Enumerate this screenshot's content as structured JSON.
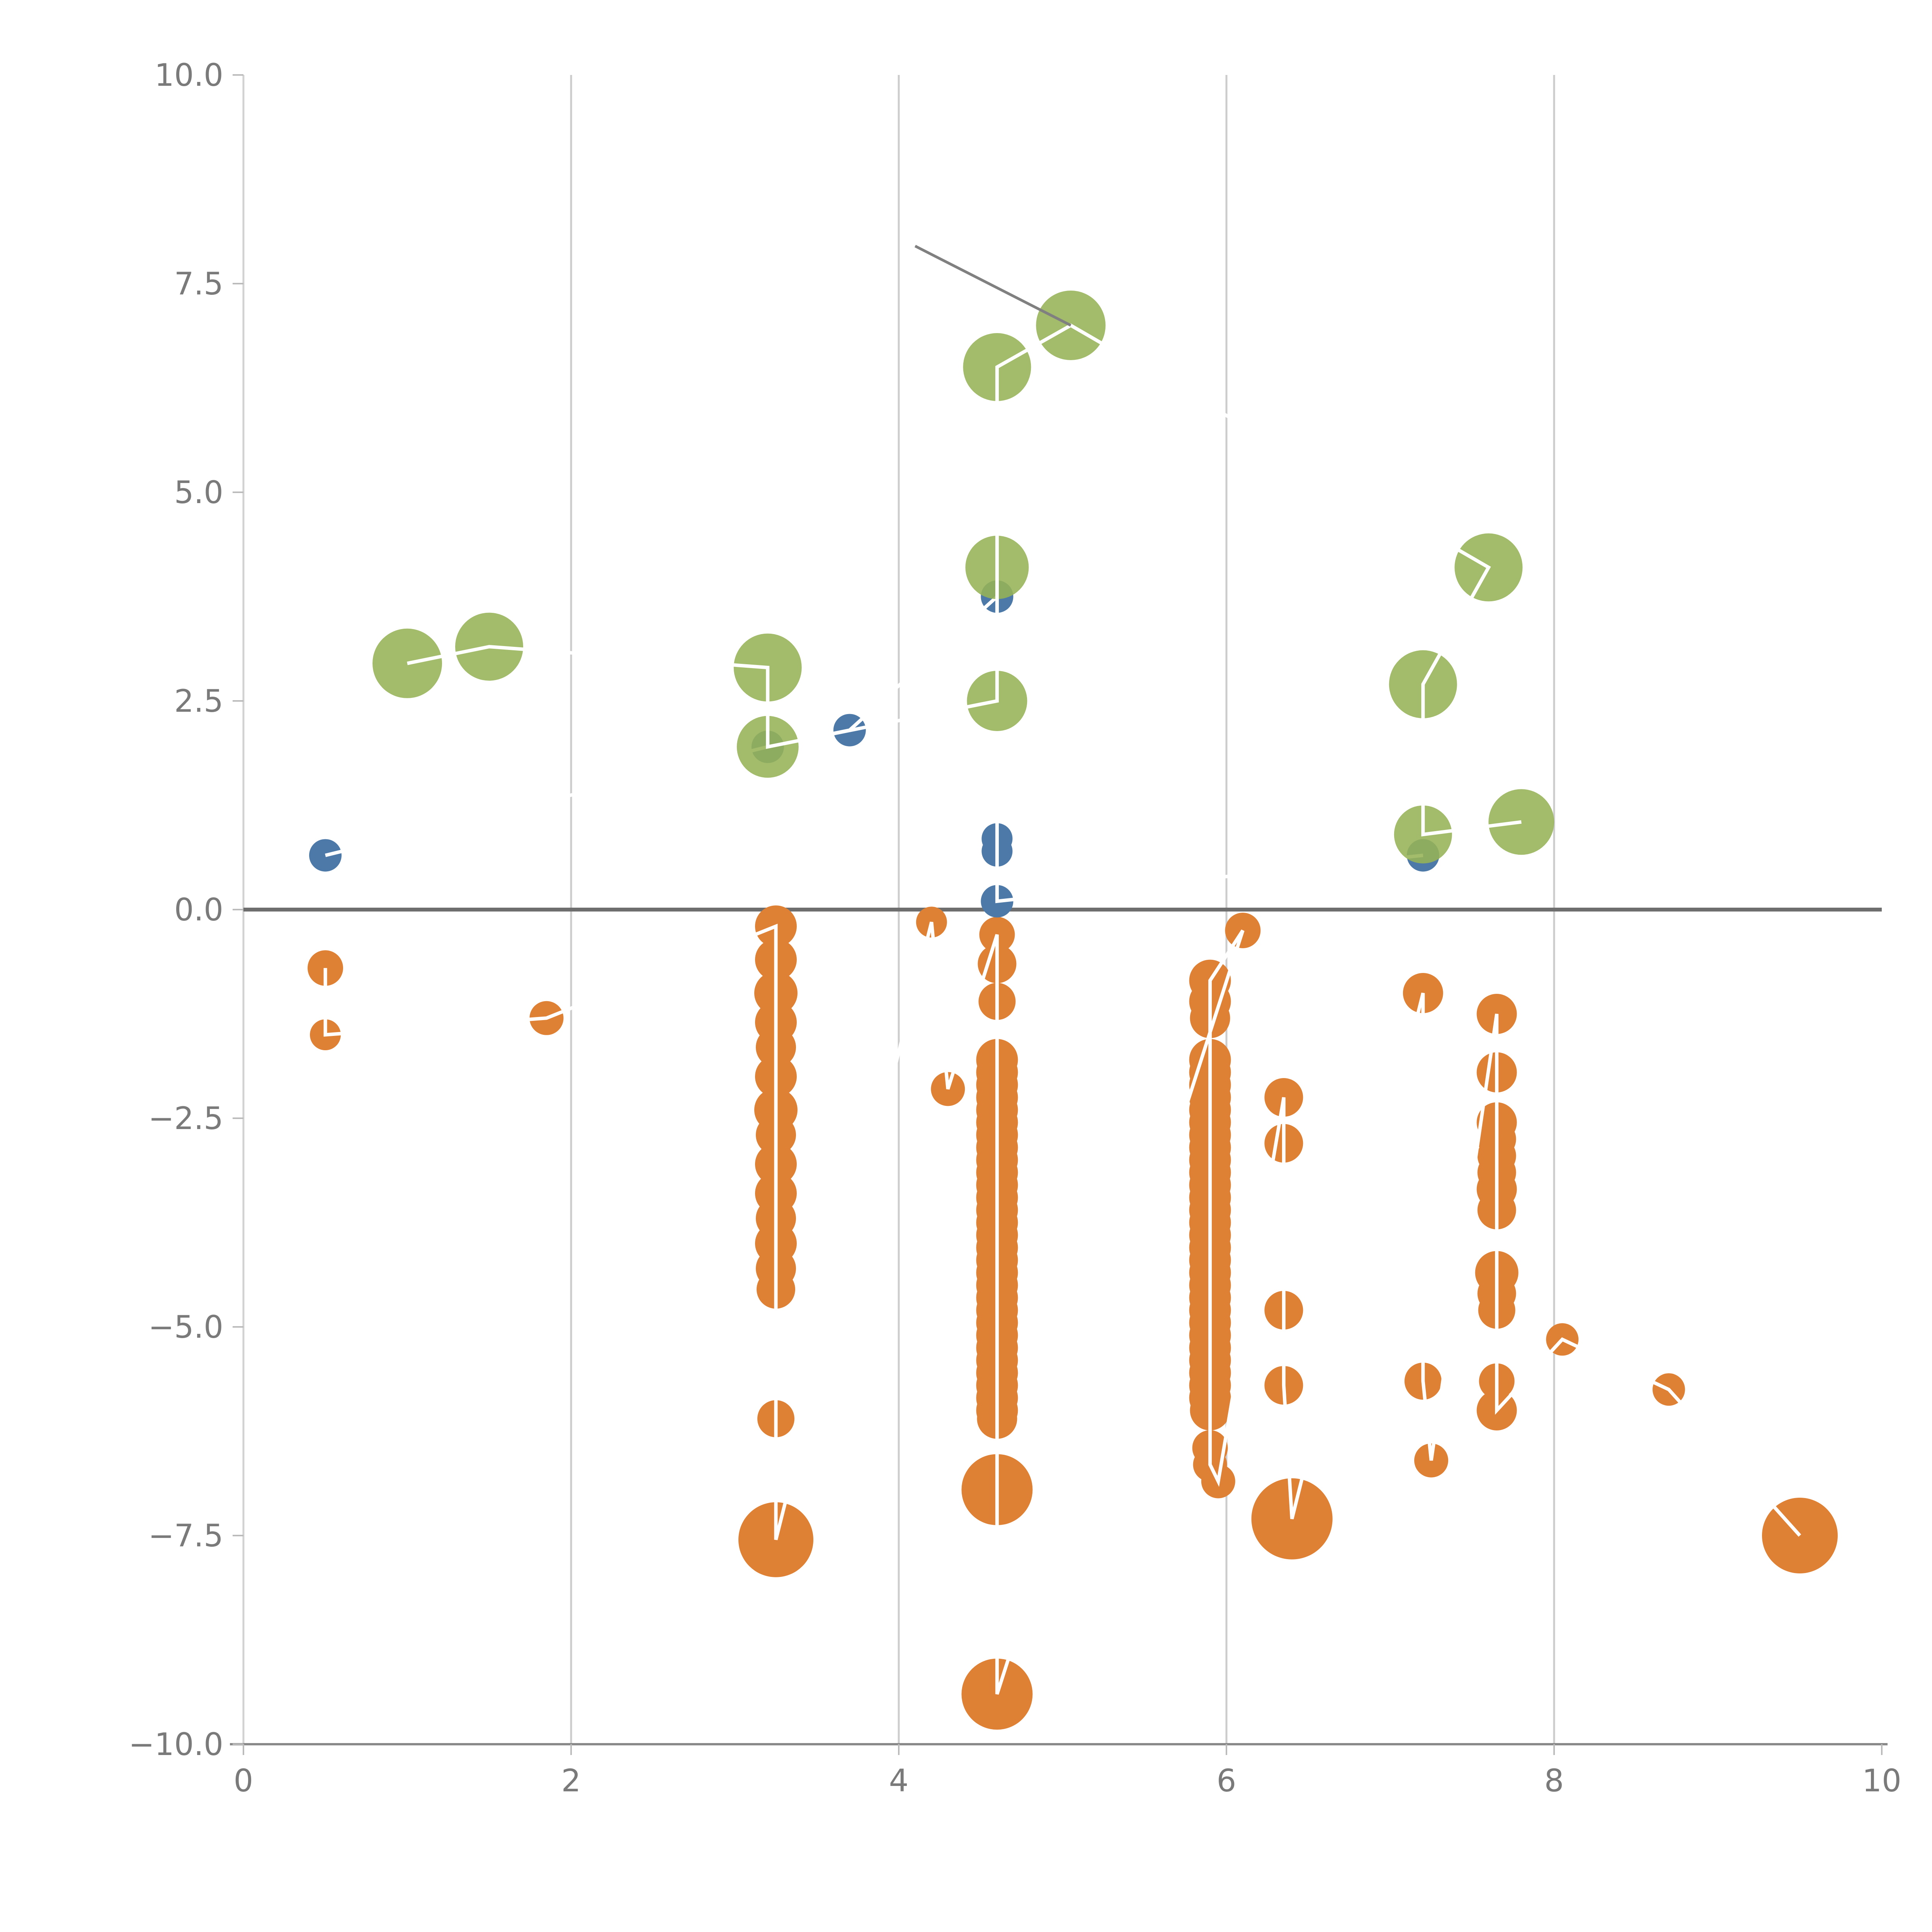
{
  "chart_data": {
    "type": "scatter",
    "title": "",
    "xlabel": "",
    "ylabel": "",
    "xlim": [
      0,
      10
    ],
    "ylim": [
      -10,
      10
    ],
    "grid_on": true,
    "grid_x": [
      2,
      4,
      6,
      8
    ],
    "zero_line_y": 0,
    "legend": null,
    "x_ticks": [
      {
        "v": 0,
        "label": "0"
      },
      {
        "v": 2,
        "label": "2"
      },
      {
        "v": 4,
        "label": "4"
      },
      {
        "v": 6,
        "label": "6"
      },
      {
        "v": 8,
        "label": "8"
      },
      {
        "v": 10,
        "label": "10"
      }
    ],
    "y_ticks": [
      {
        "v": 10,
        "label": "10.0"
      },
      {
        "v": 7.5,
        "label": "7.5"
      },
      {
        "v": 5,
        "label": "5.0"
      },
      {
        "v": 2.5,
        "label": "2.5"
      },
      {
        "v": 0,
        "label": "0.0"
      },
      {
        "v": -2.5,
        "label": "−2.5"
      },
      {
        "v": -5,
        "label": "−5.0"
      },
      {
        "v": -7.5,
        "label": "−7.5"
      },
      {
        "v": -10,
        "label": "−10.0"
      }
    ],
    "style": {
      "grid_color": "#cccccc",
      "left_spine_color": "#d2d2d2",
      "bottom_spine_color": "#8a8a8a",
      "zero_line_color": "#6e6e6e",
      "annotation_color": "#808080",
      "marker_line_color": "#ffffff",
      "tick_label_color": "#7a7a7a"
    },
    "annotation_line": {
      "x1": 4.1,
      "y1": 7.95,
      "x2": 5.05,
      "y2": 7.0
    },
    "series": [
      {
        "name": "orange",
        "color": "#DF8134",
        "opacity": 1,
        "points": [
          [
            0.5,
            -0.7,
            46
          ],
          [
            0.5,
            -1.5,
            40
          ],
          [
            1.85,
            -1.3,
            44
          ],
          [
            3.25,
            -0.2,
            54
          ],
          [
            3.25,
            -0.6,
            54
          ],
          [
            3.25,
            -1.0,
            56
          ],
          [
            3.25,
            -1.35,
            54
          ],
          [
            3.25,
            -1.65,
            52
          ],
          [
            3.25,
            -2.0,
            54
          ],
          [
            3.25,
            -2.4,
            56
          ],
          [
            3.25,
            -2.7,
            52
          ],
          [
            3.25,
            -3.05,
            54
          ],
          [
            3.25,
            -3.4,
            54
          ],
          [
            3.25,
            -3.7,
            52
          ],
          [
            3.25,
            -4.0,
            54
          ],
          [
            3.25,
            -4.3,
            52
          ],
          [
            3.25,
            -4.55,
            50
          ],
          [
            3.25,
            -6.1,
            48
          ],
          [
            3.25,
            -7.55,
            97
          ],
          [
            4.2,
            -0.15,
            40
          ],
          [
            4.3,
            -2.15,
            44
          ],
          [
            4.6,
            -0.3,
            46
          ],
          [
            4.6,
            -0.65,
            50
          ],
          [
            4.6,
            -1.1,
            48
          ],
          [
            4.6,
            -1.8,
            54
          ],
          [
            4.6,
            -1.95,
            54
          ],
          [
            4.6,
            -2.1,
            54
          ],
          [
            4.6,
            -2.25,
            54
          ],
          [
            4.6,
            -2.4,
            54
          ],
          [
            4.6,
            -2.55,
            54
          ],
          [
            4.6,
            -2.7,
            54
          ],
          [
            4.6,
            -2.85,
            54
          ],
          [
            4.6,
            -3.0,
            54
          ],
          [
            4.6,
            -3.15,
            54
          ],
          [
            4.6,
            -3.3,
            54
          ],
          [
            4.6,
            -3.45,
            54
          ],
          [
            4.6,
            -3.6,
            54
          ],
          [
            4.6,
            -3.75,
            54
          ],
          [
            4.6,
            -3.9,
            54
          ],
          [
            4.6,
            -4.05,
            54
          ],
          [
            4.6,
            -4.2,
            54
          ],
          [
            4.6,
            -4.35,
            54
          ],
          [
            4.6,
            -4.5,
            54
          ],
          [
            4.6,
            -4.65,
            54
          ],
          [
            4.6,
            -4.8,
            54
          ],
          [
            4.6,
            -4.95,
            54
          ],
          [
            4.6,
            -5.1,
            54
          ],
          [
            4.6,
            -5.25,
            54
          ],
          [
            4.6,
            -5.4,
            54
          ],
          [
            4.6,
            -5.55,
            54
          ],
          [
            4.6,
            -5.7,
            54
          ],
          [
            4.6,
            -5.85,
            54
          ],
          [
            4.6,
            -6.0,
            54
          ],
          [
            4.6,
            -6.1,
            52
          ],
          [
            4.6,
            -6.95,
            92
          ],
          [
            4.6,
            -9.4,
            92
          ],
          [
            6.1,
            -0.25,
            46
          ],
          [
            5.9,
            -0.85,
            54
          ],
          [
            5.9,
            -1.1,
            54
          ],
          [
            5.9,
            -1.3,
            52
          ],
          [
            5.9,
            -1.8,
            54
          ],
          [
            5.9,
            -1.95,
            54
          ],
          [
            5.9,
            -2.1,
            54
          ],
          [
            5.9,
            -2.25,
            54
          ],
          [
            5.9,
            -2.4,
            54
          ],
          [
            5.9,
            -2.55,
            54
          ],
          [
            5.9,
            -2.7,
            54
          ],
          [
            5.9,
            -2.85,
            54
          ],
          [
            5.9,
            -3.0,
            54
          ],
          [
            5.9,
            -3.15,
            54
          ],
          [
            5.9,
            -3.3,
            54
          ],
          [
            5.9,
            -3.45,
            54
          ],
          [
            5.9,
            -3.6,
            54
          ],
          [
            5.9,
            -3.75,
            54
          ],
          [
            5.9,
            -3.9,
            54
          ],
          [
            5.9,
            -4.05,
            54
          ],
          [
            5.9,
            -4.2,
            54
          ],
          [
            5.9,
            -4.35,
            54
          ],
          [
            5.9,
            -4.5,
            54
          ],
          [
            5.9,
            -4.65,
            54
          ],
          [
            5.9,
            -4.8,
            54
          ],
          [
            5.9,
            -4.95,
            54
          ],
          [
            5.9,
            -5.1,
            54
          ],
          [
            5.9,
            -5.25,
            54
          ],
          [
            5.9,
            -5.4,
            54
          ],
          [
            5.9,
            -5.55,
            54
          ],
          [
            5.9,
            -5.7,
            54
          ],
          [
            5.9,
            -5.85,
            54
          ],
          [
            5.9,
            -6.0,
            52
          ],
          [
            5.9,
            -6.45,
            46
          ],
          [
            5.9,
            -6.65,
            44
          ],
          [
            5.95,
            -6.85,
            44
          ],
          [
            6.35,
            -2.25,
            50
          ],
          [
            6.35,
            -2.8,
            50
          ],
          [
            6.35,
            -4.8,
            50
          ],
          [
            6.35,
            -5.7,
            50
          ],
          [
            6.4,
            -7.3,
            105
          ],
          [
            7.2,
            -1.0,
            52
          ],
          [
            7.2,
            -5.65,
            48
          ],
          [
            7.25,
            -6.6,
            44
          ],
          [
            7.65,
            -1.25,
            52
          ],
          [
            7.65,
            -1.95,
            52
          ],
          [
            7.65,
            -2.55,
            52
          ],
          [
            7.65,
            -2.75,
            50
          ],
          [
            7.65,
            -2.95,
            50
          ],
          [
            7.65,
            -3.15,
            50
          ],
          [
            7.65,
            -3.35,
            52
          ],
          [
            7.65,
            -3.6,
            50
          ],
          [
            7.65,
            -4.35,
            56
          ],
          [
            7.65,
            -4.6,
            50
          ],
          [
            7.65,
            -4.8,
            48
          ],
          [
            7.65,
            -5.65,
            46
          ],
          [
            7.65,
            -6.0,
            52
          ],
          [
            8.05,
            -5.15,
            42
          ],
          [
            8.7,
            -5.75,
            42
          ],
          [
            9.5,
            -7.5,
            98
          ]
        ]
      },
      {
        "name": "blue",
        "color": "#4C79A7",
        "opacity": 1,
        "points": [
          [
            0.5,
            0.65,
            42
          ],
          [
            3.2,
            1.95,
            42
          ],
          [
            3.7,
            2.15,
            42
          ],
          [
            4.6,
            3.75,
            42
          ],
          [
            4.6,
            0.85,
            40
          ],
          [
            4.6,
            0.7,
            40
          ],
          [
            4.6,
            0.1,
            42
          ],
          [
            7.2,
            0.65,
            42
          ]
        ]
      },
      {
        "name": "green",
        "color": "#96B356",
        "opacity": 0.88,
        "points": [
          [
            1.0,
            2.95,
            90
          ],
          [
            1.5,
            3.15,
            88
          ],
          [
            3.2,
            2.9,
            88
          ],
          [
            3.2,
            1.95,
            80
          ],
          [
            4.6,
            2.5,
            78
          ],
          [
            4.6,
            4.1,
            82
          ],
          [
            4.6,
            6.5,
            88
          ],
          [
            5.05,
            7.0,
            90
          ],
          [
            7.6,
            4.1,
            88
          ],
          [
            7.2,
            2.7,
            88
          ],
          [
            7.2,
            0.9,
            75
          ],
          [
            7.8,
            1.05,
            85
          ]
        ]
      }
    ]
  }
}
